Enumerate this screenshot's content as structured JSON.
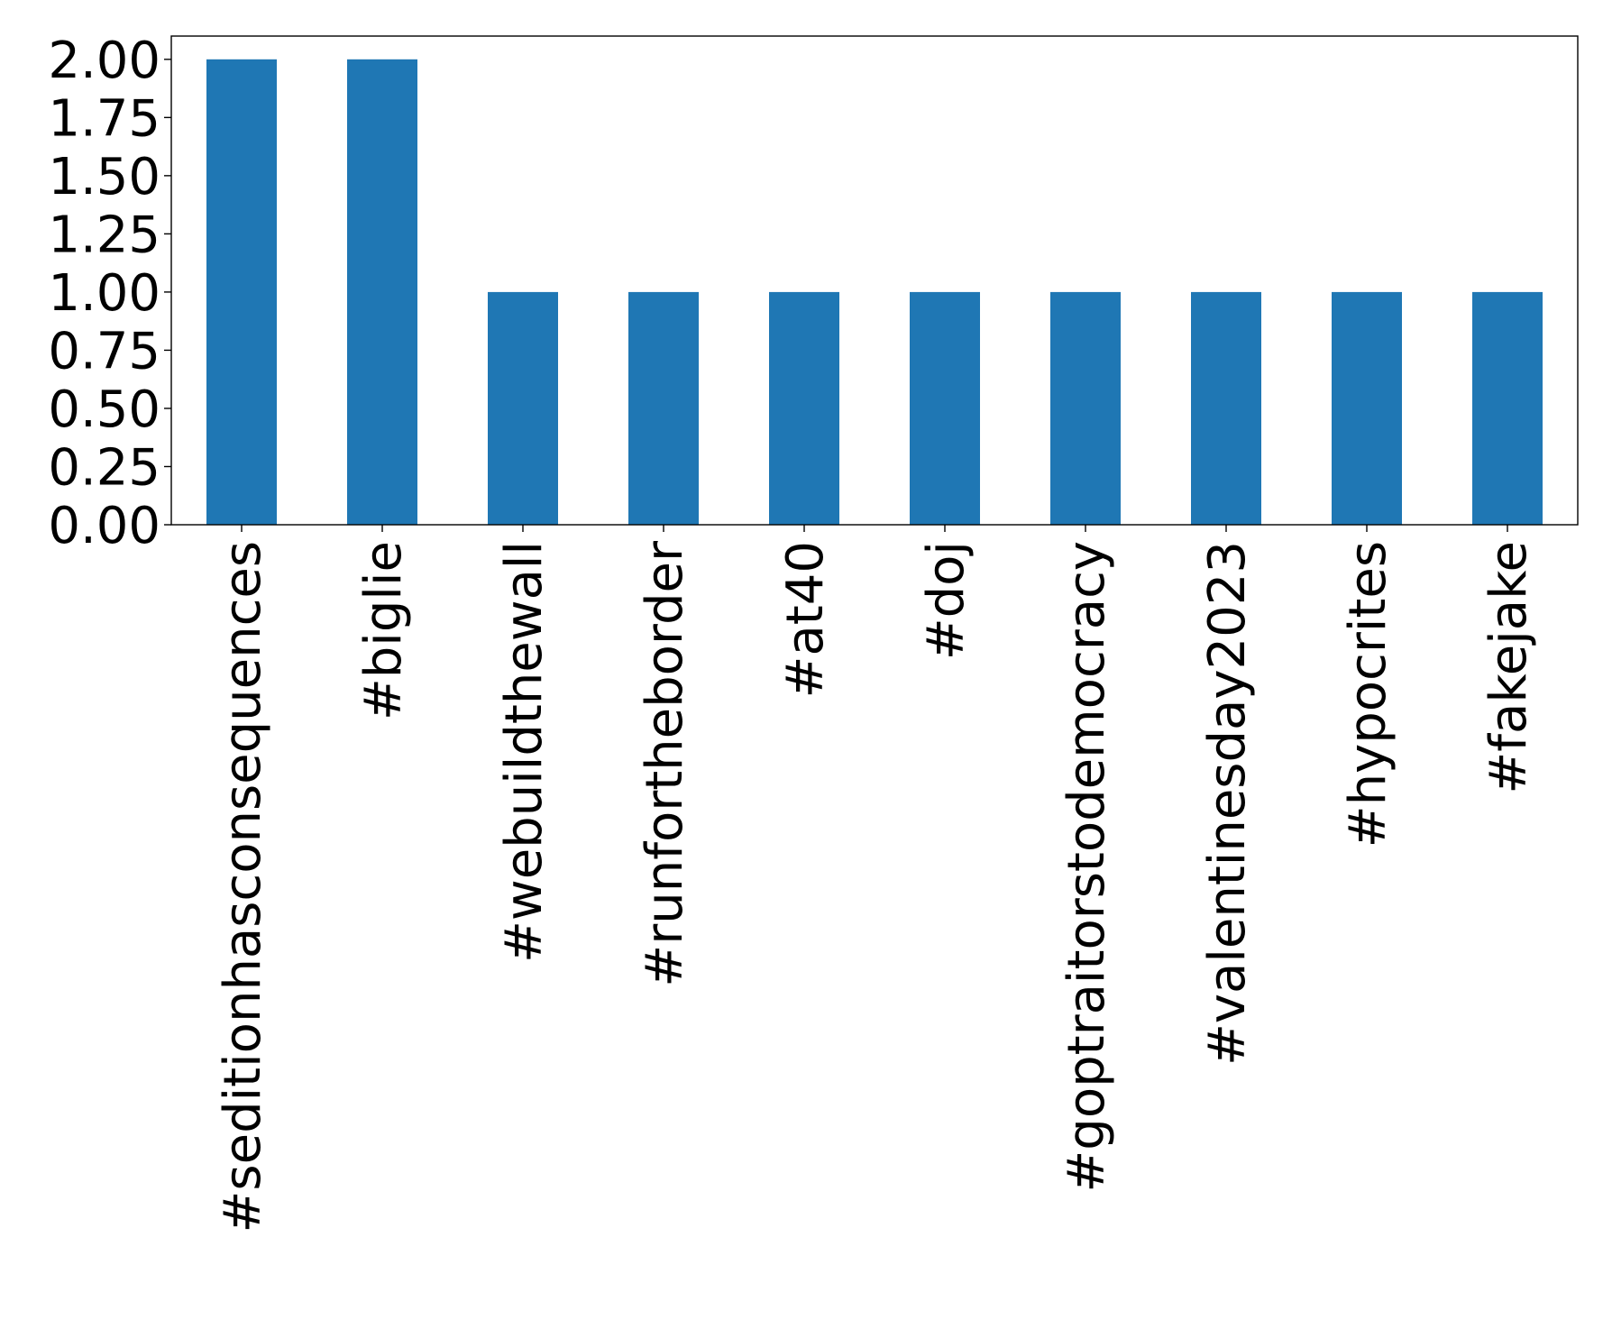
{
  "chart_data": {
    "type": "bar",
    "title": "",
    "xlabel": "",
    "ylabel": "",
    "categories": [
      "#seditionhasconsequences",
      "#biglie",
      "#webuildthewall",
      "#runfortheborder",
      "#at40",
      "#doj",
      "#goptraitorstodemocracy",
      "#valentinesday2023",
      "#hypocrites",
      "#fakejake"
    ],
    "values": [
      2,
      2,
      1,
      1,
      1,
      1,
      1,
      1,
      1,
      1
    ],
    "ylim": [
      0,
      2.1
    ],
    "yticks": [
      "0.00",
      "0.25",
      "0.50",
      "0.75",
      "1.00",
      "1.25",
      "1.50",
      "1.75",
      "2.00"
    ],
    "bar_color": "#1f77b4",
    "grid": false,
    "legend": "none"
  }
}
